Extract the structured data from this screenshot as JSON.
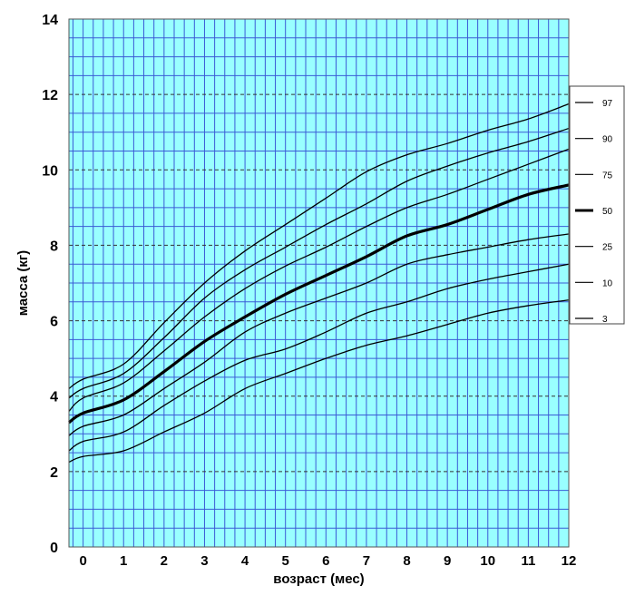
{
  "chart_data": {
    "type": "line",
    "xlabel": "возраст (мес)",
    "ylabel": "масса (кг)",
    "xlim": [
      -0.35,
      12
    ],
    "ylim": [
      0,
      14
    ],
    "x_ticks": [
      "0",
      "1",
      "2",
      "3",
      "4",
      "5",
      "6",
      "7",
      "8",
      "9",
      "10",
      "11",
      "12"
    ],
    "y_ticks": [
      "0",
      "2",
      "4",
      "6",
      "8",
      "10",
      "12",
      "14"
    ],
    "grid": true,
    "colors": {
      "plot_bg": "#99ffff",
      "grid": "#3b5bd6",
      "line": "#000000"
    },
    "legend_position": "right",
    "x": [
      -0.35,
      0,
      1,
      2,
      3,
      4,
      5,
      6,
      7,
      8,
      9,
      10,
      11,
      12
    ],
    "series": [
      {
        "name": "97",
        "values": [
          4.2,
          4.45,
          4.85,
          5.95,
          7.0,
          7.85,
          8.55,
          9.25,
          9.95,
          10.4,
          10.7,
          11.05,
          11.35,
          11.75
        ]
      },
      {
        "name": "90",
        "values": [
          3.95,
          4.2,
          4.6,
          5.55,
          6.6,
          7.35,
          7.95,
          8.55,
          9.1,
          9.7,
          10.1,
          10.45,
          10.75,
          11.1
        ]
      },
      {
        "name": "75",
        "values": [
          3.6,
          3.95,
          4.35,
          5.2,
          6.1,
          6.85,
          7.45,
          7.95,
          8.5,
          9.0,
          9.35,
          9.75,
          10.15,
          10.55
        ]
      },
      {
        "name": "50",
        "values": [
          3.3,
          3.55,
          3.9,
          4.65,
          5.45,
          6.1,
          6.7,
          7.2,
          7.7,
          8.25,
          8.55,
          8.95,
          9.35,
          9.6
        ]
      },
      {
        "name": "25",
        "values": [
          2.95,
          3.2,
          3.5,
          4.2,
          4.9,
          5.7,
          6.2,
          6.6,
          7.0,
          7.5,
          7.75,
          7.95,
          8.15,
          8.3
        ]
      },
      {
        "name": "10",
        "values": [
          2.55,
          2.8,
          3.05,
          3.75,
          4.4,
          4.95,
          5.25,
          5.7,
          6.2,
          6.5,
          6.85,
          7.1,
          7.3,
          7.5
        ]
      },
      {
        "name": "3",
        "values": [
          2.25,
          2.4,
          2.55,
          3.05,
          3.55,
          4.2,
          4.6,
          5.0,
          5.35,
          5.6,
          5.9,
          6.2,
          6.4,
          6.55
        ]
      }
    ]
  }
}
